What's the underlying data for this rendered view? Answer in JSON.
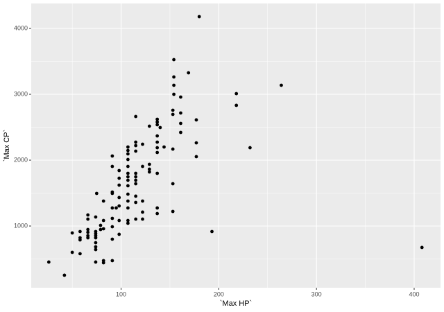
{
  "chart_data": {
    "type": "scatter",
    "x_label": "`Max HP`",
    "y_label": "`Max CP`",
    "color": "#000000",
    "grid": true,
    "background": "#ebebeb",
    "xlim": [
      8,
      427
    ],
    "ylim": [
      63,
      4379
    ],
    "xticks": [
      100,
      200,
      300,
      400
    ],
    "yticks": [
      1000,
      2000,
      3000,
      4000
    ],
    "x": [
      26,
      42,
      50,
      50,
      58,
      58,
      58,
      58,
      66,
      66,
      66,
      66,
      66,
      66,
      74,
      74,
      74,
      74,
      74,
      74,
      74,
      74,
      74,
      75,
      79,
      79,
      82,
      82,
      82,
      82,
      82,
      91,
      91,
      91,
      91,
      91,
      91,
      91,
      91,
      91,
      95,
      98,
      98,
      98,
      98,
      98,
      98,
      98,
      107,
      107,
      107,
      107,
      107,
      107,
      107,
      107,
      107,
      107,
      107,
      107,
      107,
      107,
      115,
      115,
      115,
      115,
      115,
      115,
      115,
      115,
      115,
      115,
      115,
      122,
      122,
      122,
      122,
      122,
      129,
      129,
      129,
      129,
      137,
      137,
      137,
      137,
      137,
      137,
      137,
      137,
      137,
      137,
      140,
      144,
      153,
      153,
      153,
      153,
      153,
      154,
      154,
      154,
      154,
      161,
      161,
      161,
      161,
      169,
      177,
      177,
      177,
      180,
      193,
      218,
      218,
      232,
      264,
      408
    ],
    "y": [
      453,
      253,
      895,
      600,
      916,
      821,
      789,
      579,
      1168,
      1105,
      947,
      905,
      853,
      821,
      1137,
      916,
      884,
      853,
      821,
      747,
      684,
      642,
      453,
      1495,
      1010,
      947,
      1379,
      1084,
      958,
      474,
      442,
      2063,
      1905,
      1516,
      1495,
      1274,
      1116,
      989,
      800,
      474,
      1274,
      1842,
      1726,
      1621,
      1432,
      1305,
      1084,
      874,
      2200,
      2147,
      2095,
      2010,
      1905,
      1800,
      1747,
      1695,
      1611,
      1484,
      1379,
      1274,
      1084,
      1042,
      2663,
      2274,
      2221,
      2137,
      1800,
      1747,
      1695,
      1642,
      1453,
      1358,
      1105,
      2242,
      1905,
      1379,
      1211,
      1105,
      2516,
      1937,
      1863,
      1821,
      2621,
      2579,
      2537,
      2368,
      2274,
      2189,
      2116,
      1800,
      1274,
      1189,
      2495,
      2200,
      2758,
      2695,
      2168,
      1642,
      1221,
      3526,
      3263,
      3137,
      3000,
      2958,
      2716,
      2558,
      2421,
      3326,
      2611,
      2263,
      2053,
      4179,
      916,
      3010,
      2832,
      2189,
      3137,
      674
    ]
  }
}
